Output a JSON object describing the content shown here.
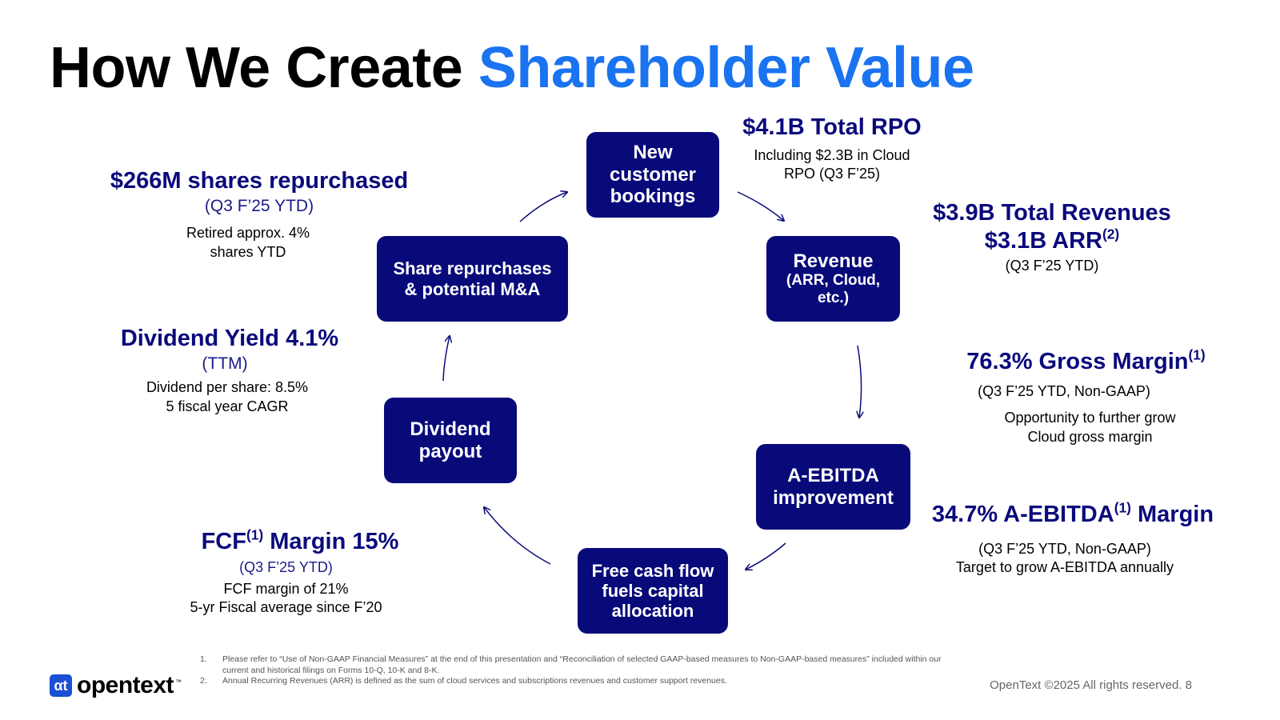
{
  "title": {
    "part1": "How We Create",
    "part2": "Shareholder Value"
  },
  "boxes": {
    "bookings": "New customer bookings",
    "revenue_main": "Revenue",
    "revenue_sub": "(ARR, Cloud, etc.)",
    "aebitda": "A-EBITDA improvement",
    "fcf": "Free cash flow fuels capital allocation",
    "dividend": "Dividend payout",
    "repurchase": "Share repurchases & potential M&A"
  },
  "callouts": {
    "rpo": {
      "headline": "$4.1B Total RPO",
      "line1": "Including $2.3B in Cloud",
      "line2": "RPO (Q3 F’25)"
    },
    "revenue": {
      "headline": "$3.9B Total Revenues",
      "arr": "$3.1B ARR",
      "arr_sup": "(2)",
      "sub": "(Q3 F’25 YTD)"
    },
    "gross_margin": {
      "headline": "76.3% Gross Margin",
      "sup": "(1)",
      "sub": "(Q3 F’25 YTD, Non-GAAP)",
      "line1": "Opportunity to further grow",
      "line2": "Cloud gross margin"
    },
    "aebitda": {
      "pre": "34.7% A-EBITDA",
      "sup": "(1)",
      "post": " Margin",
      "line1": "(Q3 F’25 YTD, Non-GAAP)",
      "line2": "Target to grow A-EBITDA annually"
    },
    "fcf": {
      "pre": "FCF",
      "sup": "(1)",
      "post": " Margin 15%",
      "sub": "(Q3 F’25 YTD)",
      "line1": "FCF margin of 21%",
      "line2": "5-yr Fiscal average since F’20"
    },
    "dividend": {
      "headline": "Dividend Yield 4.1%",
      "sub": "(TTM)",
      "line1": "Dividend per share: 8.5%",
      "line2": "5 fiscal year CAGR"
    },
    "repurchase": {
      "headline": "$266M shares repurchased",
      "sub": "(Q3 F’25 YTD)",
      "line1": "Retired approx. 4%",
      "line2": "shares YTD"
    }
  },
  "footnotes": [
    {
      "num": "1.",
      "text": "Please refer to “Use of Non-GAAP Financial Measures” at the end of this presentation and “Reconciliation of selected GAAP-based measures to Non-GAAP-based measures” included within our current and historical filings on Forms 10-Q, 10-K and 8-K."
    },
    {
      "num": "2.",
      "text": "Annual Recurring Revenues (ARR) is defined as the sum of cloud services and subscriptions revenues and customer support revenues."
    }
  ],
  "logo": {
    "mark": "αt",
    "text": "opentext",
    "tm": "™"
  },
  "copyright": "OpenText ©2025 All rights reserved. 8",
  "colors": {
    "navy": "#080a7a",
    "accent": "#1a73f0",
    "headline": "#0a0a7c"
  }
}
